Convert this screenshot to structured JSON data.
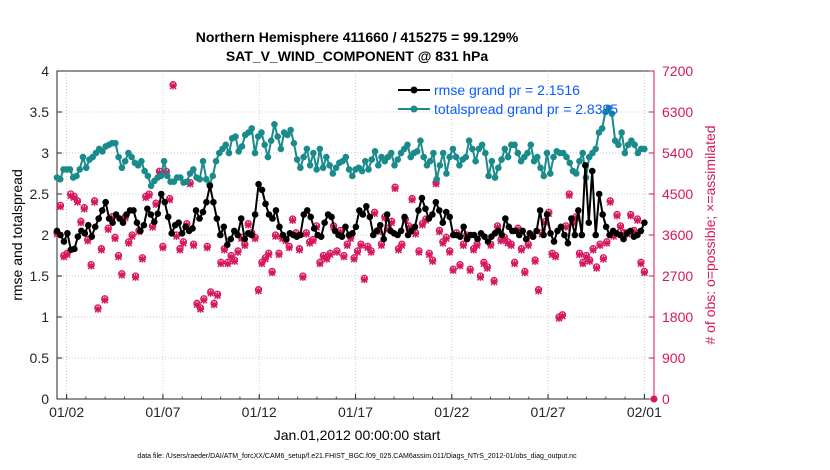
{
  "chart_data": {
    "type": "line",
    "title": "Northern Hemisphere 411660 / 415275 = 99.129%",
    "subtitle": "SAT_V_WIND_COMPONENT @ 831 hPa",
    "xlabel": "Jan.01,2012 00:00:00 start",
    "ylabel_left": "rmse and totalspread",
    "ylabel_right": "# of obs: o=possible; ×=assimilated",
    "footnote": "data file: /Users/raeder/DAI/ATM_forcXX/CAM6_setup/f.e21.FHIST_BGC.f09_025.CAM6assim.011/Diags_NTrS_2012-01/obs_diag_output.nc",
    "xlim": [
      0.5,
      31.5
    ],
    "ylim_left": [
      0,
      4
    ],
    "ylim_right": [
      0,
      7200
    ],
    "x_ticks": [
      1,
      6,
      11,
      16,
      21,
      26,
      31
    ],
    "x_tick_labels": [
      "01/02",
      "01/07",
      "01/12",
      "01/17",
      "01/22",
      "01/27",
      "02/01"
    ],
    "y_left_ticks": [
      "0",
      "0.5",
      "1",
      "1.5",
      "2",
      "2.5",
      "3",
      "3.5",
      "4"
    ],
    "y_right_ticks": [
      "0",
      "900",
      "1800",
      "2700",
      "3600",
      "4500",
      "5400",
      "6300",
      "7200"
    ],
    "colors": {
      "rmse": "#000000",
      "spread": "#1a8a8a",
      "obs": "#d6175e",
      "legend_text": "#0a5cff",
      "right_axis": "#d6175e"
    },
    "series": [
      {
        "name": "rmse grand pr = 2.1516",
        "axis": "left",
        "values": [
          2.05,
          2.0,
          1.92,
          2.02,
          1.82,
          1.83,
          1.98,
          2.05,
          2.02,
          2.12,
          1.98,
          2.1,
          2.2,
          2.3,
          2.4,
          2.2,
          2.15,
          2.25,
          2.2,
          2.15,
          2.25,
          2.3,
          2.3,
          2.15,
          2.05,
          2.12,
          2.32,
          2.25,
          2.16,
          2.26,
          2.5,
          2.4,
          2.22,
          2.02,
          2.12,
          2.15,
          2.02,
          2.1,
          2.05,
          2.08,
          2.3,
          2.2,
          2.28,
          2.4,
          2.6,
          2.4,
          2.2,
          2.0,
          2.1,
          1.88,
          1.95,
          2.05,
          2.0,
          2.2,
          1.95,
          2.02,
          2.0,
          2.25,
          2.62,
          2.55,
          2.38,
          2.25,
          2.2,
          2.3,
          2.1,
          2.0,
          1.95,
          2.02,
          2.0,
          1.98,
          2.0,
          2.25,
          2.3,
          2.22,
          2.08,
          2.0,
          1.98,
          2.15,
          2.25,
          2.22,
          2.05,
          2.0,
          1.98,
          2.1,
          2.0,
          2.02,
          2.1,
          2.3,
          2.25,
          2.35,
          2.22,
          2.0,
          2.05,
          2.12,
          1.95,
          2.25,
          2.05,
          2.02,
          2.0,
          2.05,
          2.22,
          2.0,
          2.05,
          2.1,
          2.3,
          2.45,
          2.32,
          2.2,
          2.25,
          2.4,
          2.3,
          2.15,
          2.28,
          2.22,
          2.0,
          2.0,
          1.98,
          2.1,
          1.95,
          2.0,
          2.0,
          1.95,
          2.02,
          1.98,
          1.92,
          1.98,
          2.02,
          2.05,
          2.0,
          2.2,
          2.1,
          2.05,
          2.05,
          2.0,
          2.05,
          1.95,
          2.02,
          1.98,
          2.05,
          2.3,
          2.0,
          2.25,
          2.02,
          1.92,
          2.05,
          2.1,
          2.0,
          1.9,
          2.2,
          2.0,
          2.3,
          2.0,
          2.85,
          2.15,
          2.78,
          2.0,
          2.5,
          2.25,
          2.1,
          2.0,
          2.05,
          2.02,
          2.0,
          1.95,
          2.02,
          2.05,
          1.98,
          2.0,
          2.05,
          2.15
        ]
      },
      {
        "name": "totalspread grand pr = 2.8395",
        "axis": "left",
        "values": [
          2.7,
          2.68,
          2.8,
          2.8,
          2.8,
          2.7,
          2.72,
          2.8,
          2.95,
          2.82,
          2.92,
          2.95,
          3.0,
          3.05,
          3.02,
          3.08,
          3.1,
          3.12,
          3.12,
          2.95,
          2.82,
          2.9,
          3.0,
          2.95,
          2.88,
          2.85,
          2.9,
          2.78,
          2.72,
          2.6,
          2.66,
          2.7,
          2.72,
          2.9,
          2.72,
          2.65,
          2.65,
          2.7,
          2.7,
          2.64,
          2.65,
          2.75,
          2.8,
          2.7,
          2.68,
          2.9,
          2.68,
          2.62,
          2.72,
          2.9,
          3.0,
          3.05,
          3.1,
          3.0,
          3.18,
          3.2,
          3.02,
          3.08,
          3.22,
          3.25,
          3.3,
          3.0,
          3.2,
          3.25,
          3.1,
          2.95,
          3.15,
          3.35,
          3.2,
          3.05,
          3.25,
          3.22,
          3.28,
          3.12,
          2.92,
          2.82,
          2.95,
          3.05,
          2.85,
          3.0,
          2.8,
          3.05,
          2.82,
          2.95,
          2.85,
          2.75,
          2.82,
          2.88,
          2.9,
          2.95,
          2.8,
          2.72,
          2.8,
          2.82,
          2.78,
          2.9,
          2.8,
          2.92,
          3.02,
          2.85,
          2.95,
          2.9,
          2.95,
          3.0,
          2.85,
          2.92,
          3.0,
          3.05,
          3.1,
          2.95,
          3.0,
          3.02,
          3.15,
          2.95,
          2.85,
          2.9,
          3.0,
          2.68,
          2.85,
          3.0,
          2.75,
          2.95,
          3.05,
          2.95,
          2.85,
          2.92,
          2.95,
          3.15,
          3.05,
          2.9,
          3.05,
          3.1,
          3.0,
          2.72,
          2.9,
          2.7,
          2.82,
          2.92,
          3.05,
          2.95,
          3.1,
          3.1,
          3.0,
          2.9,
          2.95,
          3.0,
          3.1,
          2.9,
          2.95,
          2.82,
          2.72,
          3.0,
          2.75,
          2.95,
          3.02,
          3.0,
          3.0,
          2.95,
          2.88,
          2.78,
          2.75,
          2.9,
          3.0,
          2.7,
          2.95,
          3.0,
          3.05,
          3.25,
          3.3,
          3.5,
          3.55,
          3.48,
          3.15,
          3.1,
          3.25,
          3.0,
          3.1,
          3.15,
          3.1,
          3.0,
          3.05,
          3.05
        ]
      },
      {
        "name": "obs possible",
        "axis": "right",
        "values": [
          3650,
          4250,
          3150,
          3200,
          4500,
          4450,
          4350,
          3900,
          4200,
          3500,
          2950,
          4350,
          2000,
          3300,
          2200,
          3750,
          4000,
          3550,
          3150,
          2750,
          4000,
          3450,
          3600,
          2700,
          3700,
          3100,
          4450,
          4500,
          3800,
          4300,
          5000,
          3350,
          5000,
          4400,
          6900,
          3600,
          3300,
          3450,
          3850,
          4750,
          3400,
          2100,
          2000,
          2200,
          3350,
          2350,
          2100,
          2300,
          3000,
          3300,
          3000,
          3150,
          3050,
          3250,
          3550,
          3400,
          3850,
          3650,
          3550,
          2400,
          3000,
          3100,
          3200,
          2800,
          3600,
          3200,
          3550,
          3500,
          3350,
          3950,
          3650,
          3300,
          2700,
          3650,
          3450,
          3500,
          3800,
          3000,
          3150,
          3100,
          3200,
          3800,
          3250,
          3700,
          3150,
          3400,
          3550,
          3100,
          3250,
          3400,
          2650,
          3350,
          3250,
          4100,
          3700,
          3400,
          4000,
          3750,
          3900,
          4650,
          3300,
          3400,
          3950,
          3800,
          4400,
          3650,
          3250,
          3850,
          3950,
          3200,
          3050,
          4750,
          3700,
          3450,
          3550,
          3250,
          2850,
          3650,
          2950,
          3400,
          3600,
          2850,
          3300,
          3400,
          2700,
          3000,
          2900,
          3400,
          2600,
          3800,
          3500,
          3550,
          3450,
          3400,
          3000,
          3750,
          3300,
          2800,
          3400,
          3600,
          3050,
          2400,
          3650,
          3900,
          4100,
          3200,
          3150,
          1800,
          1850,
          3800,
          4500,
          3900,
          4000,
          3200,
          3000,
          3150,
          3050,
          3300,
          2900,
          3400,
          3100,
          3450,
          4350,
          3600,
          4050,
          3800,
          3650,
          3650,
          4050,
          3700,
          3950,
          3000,
          2800
        ]
      },
      {
        "name": "obs assimilated",
        "axis": "right",
        "values": [
          3620,
          4220,
          3120,
          3170,
          4460,
          4420,
          4320,
          3870,
          4170,
          3470,
          2920,
          4320,
          1970,
          3270,
          2170,
          3720,
          3970,
          3520,
          3120,
          2720,
          3970,
          3420,
          3570,
          2670,
          3670,
          3070,
          4420,
          4470,
          3770,
          4270,
          4970,
          3320,
          4970,
          4370,
          6870,
          3570,
          3270,
          3420,
          3820,
          4720,
          3370,
          2070,
          1970,
          2170,
          3320,
          2320,
          2070,
          2270,
          2970,
          3270,
          2970,
          3120,
          3020,
          3220,
          3520,
          3370,
          3820,
          3620,
          3520,
          2370,
          2970,
          3070,
          3170,
          2770,
          3570,
          3170,
          3520,
          3470,
          3320,
          3920,
          3620,
          3270,
          2670,
          3620,
          3420,
          3470,
          3770,
          2970,
          3120,
          3070,
          3170,
          3770,
          3220,
          3670,
          3120,
          3370,
          3520,
          3070,
          3220,
          3370,
          2620,
          3320,
          3220,
          4070,
          3670,
          3370,
          3970,
          3720,
          3870,
          4620,
          3270,
          3370,
          3920,
          3770,
          4370,
          3620,
          3220,
          3820,
          3920,
          3170,
          3020,
          4720,
          3670,
          3420,
          3520,
          3220,
          2820,
          3620,
          2920,
          3370,
          3570,
          2820,
          3270,
          3370,
          2670,
          2970,
          2870,
          3370,
          2570,
          3770,
          3470,
          3520,
          3420,
          3370,
          2970,
          3720,
          3270,
          2770,
          3370,
          3570,
          3020,
          2370,
          3620,
          3870,
          4070,
          3170,
          3120,
          1770,
          1820,
          3770,
          4470,
          3870,
          3970,
          3170,
          2970,
          3120,
          3020,
          3270,
          2870,
          3370,
          3070,
          3420,
          4320,
          3570,
          4020,
          3770,
          3620,
          3620,
          4020,
          3670,
          3920,
          2970,
          2770
        ]
      }
    ]
  }
}
